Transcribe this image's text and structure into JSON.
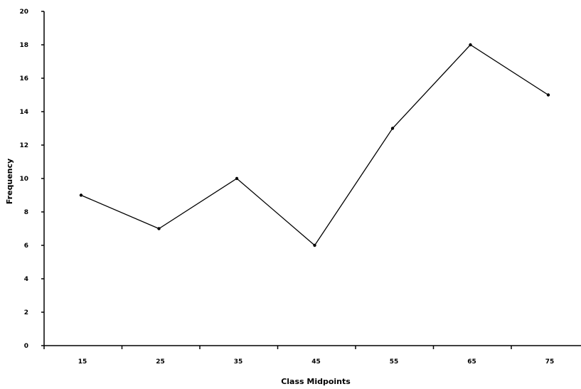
{
  "chart_data": {
    "type": "line",
    "title": "",
    "xlabel": "Class Midpoints",
    "ylabel": "Frequency",
    "categories": [
      "15",
      "25",
      "35",
      "45",
      "55",
      "65",
      "75"
    ],
    "values": [
      9,
      7,
      10,
      6,
      13,
      18,
      15
    ],
    "ylim": [
      0,
      20
    ],
    "yticks": [
      "0",
      "2",
      "4",
      "6",
      "8",
      "10",
      "12",
      "14",
      "16",
      "18",
      "20"
    ],
    "grid": false,
    "legend": "none",
    "line_color": "#000000",
    "marker": "dot"
  }
}
